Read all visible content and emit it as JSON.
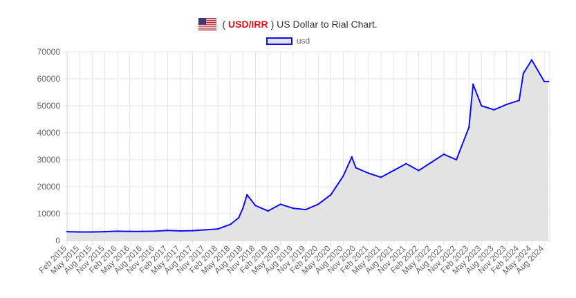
{
  "header": {
    "title_open": "(",
    "title_pair": "USD/IRR",
    "title_rest": ") US Dollar to Rial Chart.",
    "flag_icon": "us-flag-icon"
  },
  "legend": {
    "label": "usd"
  },
  "colors": {
    "line": "#0a0aff",
    "fill": "#e3e3e3",
    "grid": "#e6e6e6",
    "axis_text": "#666666",
    "pair": "#e0121b"
  },
  "chart_data": {
    "type": "area",
    "title": "(USD/IRR) US Dollar to Rial Chart.",
    "xlabel": "",
    "ylabel": "",
    "ylim": [
      0,
      70000
    ],
    "yticks": [
      0,
      10000,
      20000,
      30000,
      40000,
      50000,
      60000,
      70000
    ],
    "grid": true,
    "legend_position": "top-center",
    "series": [
      {
        "name": "usd",
        "x": [
          "Feb 2015",
          "May 2015",
          "Aug 2015",
          "Nov 2015",
          "Feb 2016",
          "May 2016",
          "Aug 2016",
          "Nov 2016",
          "Feb 2017",
          "May 2017",
          "Aug 2017",
          "Nov 2017",
          "Feb 2018",
          "May 2018",
          "Jul 2018",
          "Aug 2018",
          "Sep 2018",
          "Nov 2018",
          "Feb 2019",
          "May 2019",
          "Aug 2019",
          "Nov 2019",
          "Feb 2020",
          "May 2020",
          "Aug 2020",
          "Oct 2020",
          "Nov 2020",
          "Feb 2021",
          "May 2021",
          "Aug 2021",
          "Nov 2021",
          "Feb 2022",
          "May 2022",
          "Aug 2022",
          "Nov 2022",
          "Feb 2023",
          "Mar 2023",
          "May 2023",
          "Aug 2023",
          "Nov 2023",
          "Feb 2024",
          "Mar 2024",
          "May 2024",
          "Aug 2024",
          "Sep 2024"
        ],
        "values": [
          3300,
          3200,
          3200,
          3300,
          3500,
          3400,
          3400,
          3500,
          3800,
          3600,
          3700,
          4000,
          4300,
          6000,
          8500,
          12000,
          17000,
          13000,
          11000,
          13500,
          12000,
          11500,
          13500,
          17000,
          24000,
          31000,
          27000,
          25000,
          23500,
          26000,
          28500,
          26000,
          29000,
          32000,
          30000,
          42000,
          58000,
          50000,
          48500,
          50500,
          52000,
          62000,
          67000,
          59000,
          59000
        ]
      }
    ],
    "x_tick_labels": [
      "Feb 2015",
      "May 2015",
      "Aug 2015",
      "Nov 2015",
      "Feb 2016",
      "May 2016",
      "Aug 2016",
      "Nov 2016",
      "Feb 2017",
      "May 2017",
      "Aug 2017",
      "Nov 2017",
      "Feb 2018",
      "May 2018",
      "Aug 2018",
      "Nov 2018",
      "Feb 2019",
      "May 2019",
      "Aug 2019",
      "Nov 2019",
      "Feb 2020",
      "May 2020",
      "Aug 2020",
      "Nov 2020",
      "Feb 2021",
      "May 2021",
      "Aug 2021",
      "Nov 2021",
      "Feb 2022",
      "May 2022",
      "Aug 2022",
      "Nov 2022",
      "Feb 2023",
      "May 2023",
      "Aug 2023",
      "Nov 2023",
      "Feb 2024",
      "May 2024",
      "Aug 2024"
    ]
  }
}
